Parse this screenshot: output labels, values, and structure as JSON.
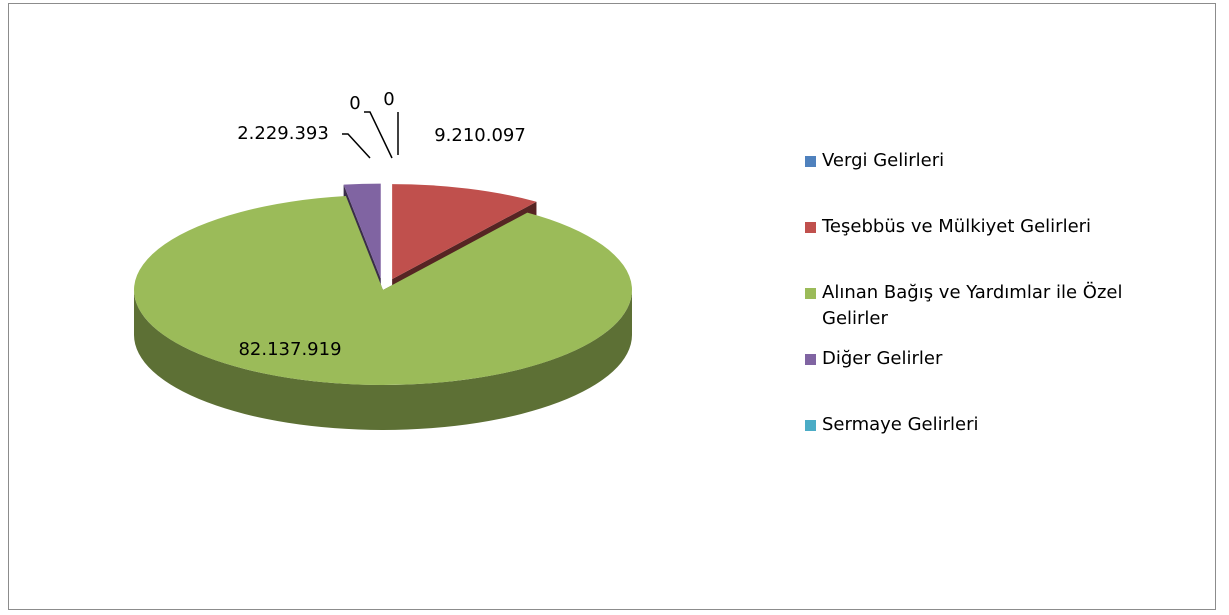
{
  "chart_data": {
    "type": "pie",
    "categories": [
      "Vergi Gelirleri",
      "Teşebbüs ve Mülkiyet Gelirleri",
      "Alınan Bağış ve Yardımlar ile Özel Gelirler",
      "Diğer Gelirler",
      "Sermaye Gelirleri"
    ],
    "values": [
      0,
      9210097,
      82137919,
      2229393,
      0
    ],
    "value_labels": [
      "0",
      "9.210.097",
      "82.137.919",
      "2.229.393",
      "0"
    ],
    "colors": [
      "#4f81bd",
      "#c0504d",
      "#9bbb59",
      "#8064a2",
      "#4bacc6"
    ],
    "legend": "right"
  }
}
